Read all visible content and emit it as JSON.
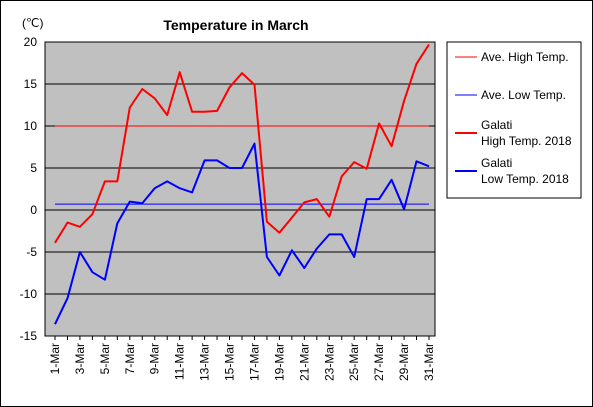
{
  "chart_data": {
    "type": "line",
    "title": "Temperature in March",
    "unit_label": "(℃)",
    "xlabel": "",
    "ylabel": "",
    "ylim": [
      -15,
      20
    ],
    "y_ticks": [
      -15,
      -10,
      -5,
      0,
      5,
      10,
      15,
      20
    ],
    "grid": true,
    "legend_position": "right",
    "categories": [
      "1-Mar",
      "2-Mar",
      "3-Mar",
      "4-Mar",
      "5-Mar",
      "6-Mar",
      "7-Mar",
      "8-Mar",
      "9-Mar",
      "10-Mar",
      "11-Mar",
      "12-Mar",
      "13-Mar",
      "14-Mar",
      "15-Mar",
      "16-Mar",
      "17-Mar",
      "18-Mar",
      "19-Mar",
      "20-Mar",
      "21-Mar",
      "22-Mar",
      "23-Mar",
      "24-Mar",
      "25-Mar",
      "26-Mar",
      "27-Mar",
      "28-Mar",
      "29-Mar",
      "30-Mar",
      "31-Mar"
    ],
    "tick_labels": [
      "1-Mar",
      "3-Mar",
      "5-Mar",
      "7-Mar",
      "9-Mar",
      "11-Mar",
      "13-Mar",
      "15-Mar",
      "17-Mar",
      "19-Mar",
      "21-Mar",
      "23-Mar",
      "25-Mar",
      "27-Mar",
      "29-Mar",
      "31-Mar"
    ],
    "series": [
      {
        "name": "Ave. High Temp.",
        "color": "#ff0000",
        "thin": true,
        "values": [
          10,
          10,
          10,
          10,
          10,
          10,
          10,
          10,
          10,
          10,
          10,
          10,
          10,
          10,
          10,
          10,
          10,
          10,
          10,
          10,
          10,
          10,
          10,
          10,
          10,
          10,
          10,
          10,
          10,
          10,
          10
        ]
      },
      {
        "name": "Ave. Low Temp.",
        "color": "#0000ff",
        "thin": true,
        "values": [
          0.7,
          0.7,
          0.7,
          0.7,
          0.7,
          0.7,
          0.7,
          0.7,
          0.7,
          0.7,
          0.7,
          0.7,
          0.7,
          0.7,
          0.7,
          0.7,
          0.7,
          0.7,
          0.7,
          0.7,
          0.7,
          0.7,
          0.7,
          0.7,
          0.7,
          0.7,
          0.7,
          0.7,
          0.7,
          0.7,
          0.7
        ]
      },
      {
        "name": "Galati High Temp. 2018",
        "legend_lines": [
          "Galati",
          "High Temp. 2018"
        ],
        "color": "#ff0000",
        "thin": false,
        "values": [
          -3.9,
          -1.5,
          -2.0,
          -0.5,
          3.4,
          3.4,
          12.2,
          14.4,
          13.3,
          11.3,
          16.4,
          11.7,
          11.7,
          11.8,
          14.6,
          16.3,
          14.9,
          -1.4,
          -2.7,
          -0.9,
          0.9,
          1.3,
          -0.8,
          4.0,
          5.7,
          4.9,
          10.3,
          7.6,
          13.0,
          17.4,
          19.7
        ]
      },
      {
        "name": "Galati Low Temp. 2018",
        "legend_lines": [
          "Galati",
          "Low Temp. 2018"
        ],
        "color": "#0000ff",
        "thin": false,
        "values": [
          -13.6,
          -10.5,
          -5.0,
          -7.4,
          -8.3,
          -1.6,
          1.0,
          0.8,
          2.6,
          3.4,
          2.6,
          2.1,
          5.9,
          5.9,
          5.0,
          5.0,
          7.9,
          -5.6,
          -7.8,
          -4.8,
          -6.9,
          -4.6,
          -2.9,
          -2.9,
          -5.6,
          1.3,
          1.3,
          3.6,
          0.1,
          5.8,
          5.2
        ]
      }
    ]
  }
}
